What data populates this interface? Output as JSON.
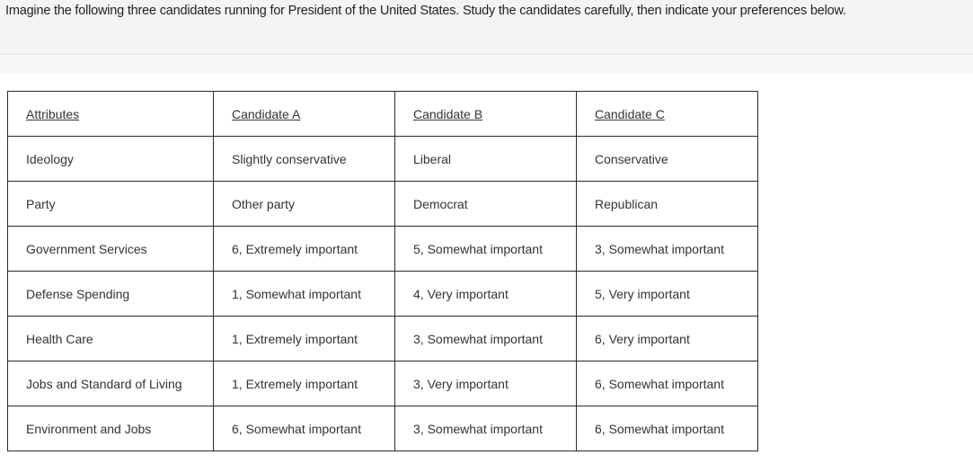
{
  "question": {
    "text": "Imagine the following three candidates running for President of the United States. Study the candidates carefully, then indicate your preferences below."
  },
  "table": {
    "headers": [
      "Attributes",
      "Candidate A",
      "Candidate B",
      "Candidate C"
    ],
    "rows": [
      {
        "attribute": "Ideology",
        "a": "Slightly conservative",
        "b": "Liberal",
        "c": "Conservative"
      },
      {
        "attribute": "Party",
        "a": "Other party",
        "b": "Democrat",
        "c": "Republican"
      },
      {
        "attribute": "Government Services",
        "a": "6, Extremely important",
        "b": "5, Somewhat important",
        "c": "3, Somewhat important"
      },
      {
        "attribute": "Defense Spending",
        "a": "1, Somewhat important",
        "b": "4, Very important",
        "c": "5, Very important"
      },
      {
        "attribute": "Health Care",
        "a": "1, Extremely important",
        "b": "3, Somewhat important",
        "c": "6, Very important"
      },
      {
        "attribute": "Jobs and Standard of Living",
        "a": "1, Extremely important",
        "b": "3, Very important",
        "c": "6, Somewhat important"
      },
      {
        "attribute": "Environment and Jobs",
        "a": "6, Somewhat important",
        "b": "3, Somewhat important",
        "c": "6, Somewhat important"
      }
    ]
  }
}
